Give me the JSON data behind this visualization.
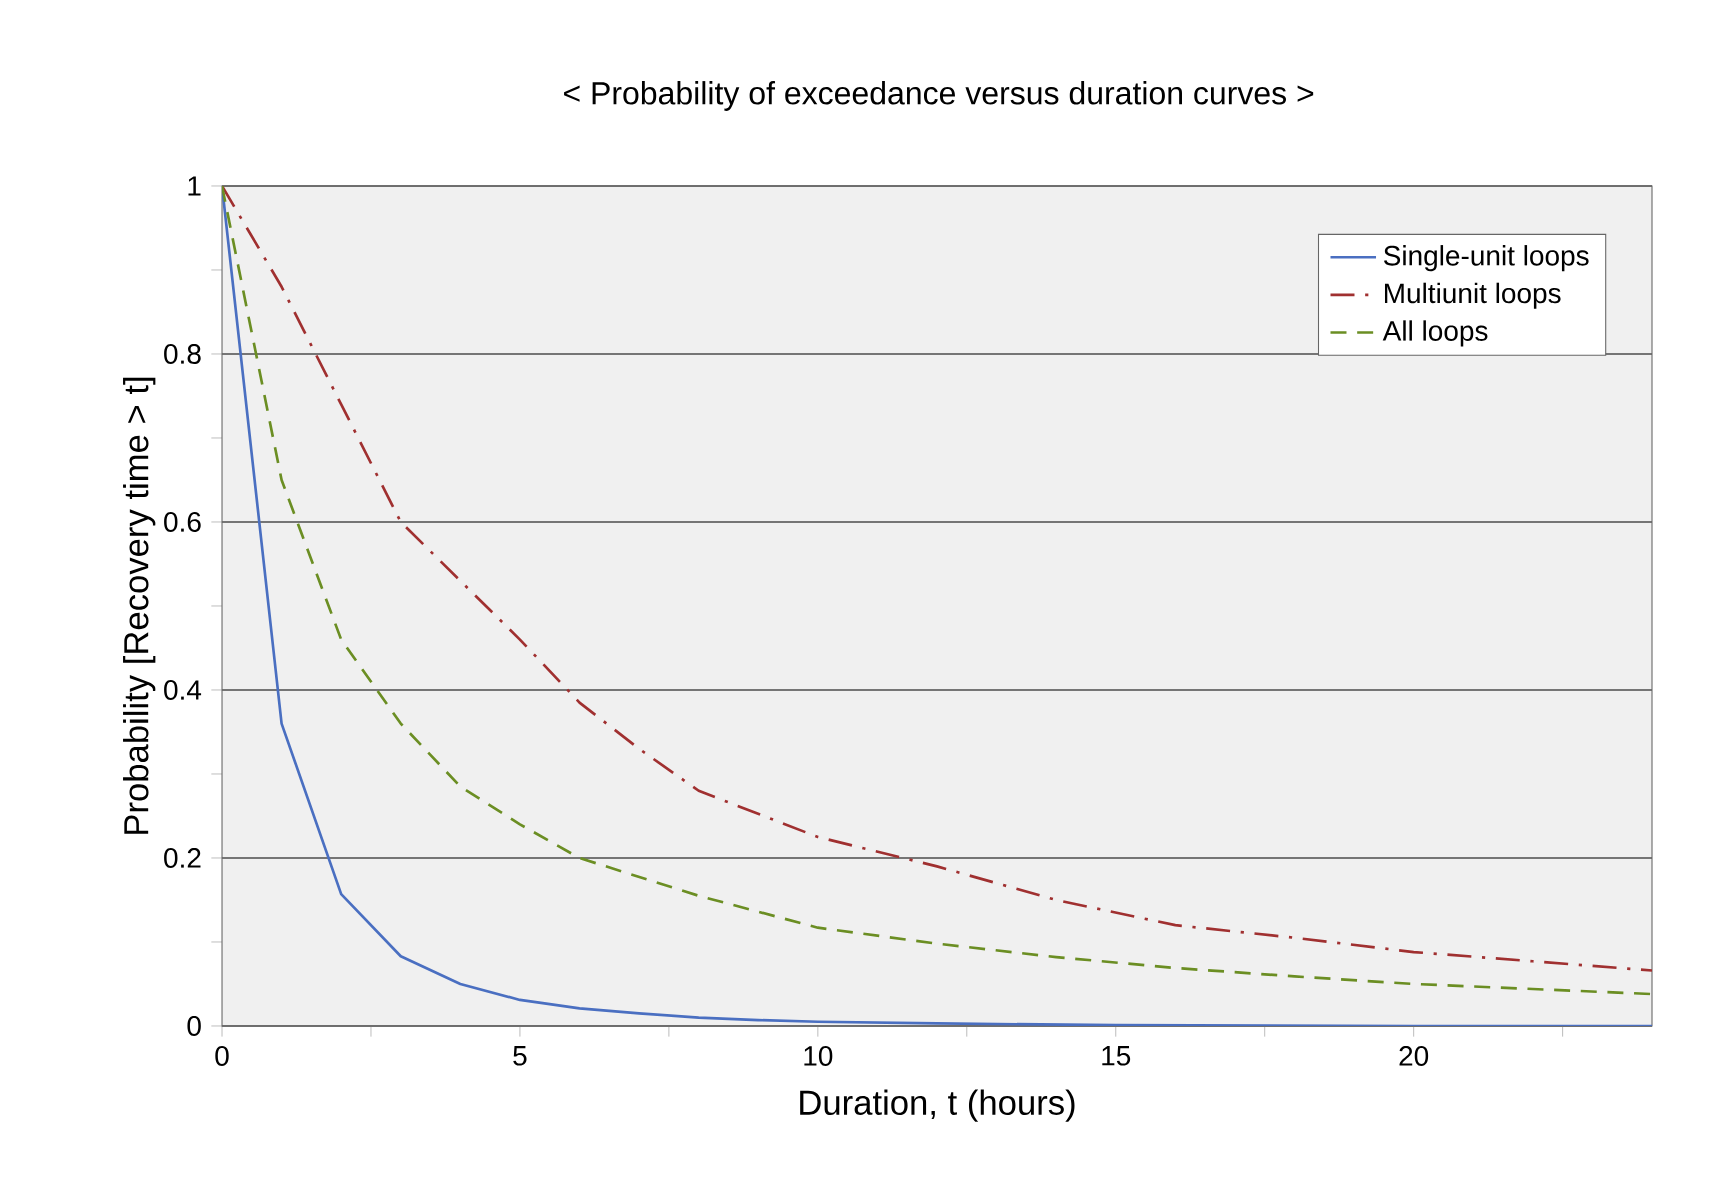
{
  "chart_data": {
    "type": "line",
    "title": "< Probability of exceedance versus duration curves >",
    "xlabel": "Duration, t (hours)",
    "ylabel": "Probability [Recovery time > t]",
    "xlim": [
      0,
      24
    ],
    "ylim": [
      0,
      1
    ],
    "xticks": [
      0,
      {
        "value": 2.5,
        "label": null
      },
      5,
      {
        "value": 7.5,
        "label": null
      },
      10,
      {
        "value": 12.5,
        "label": null
      },
      15,
      {
        "value": 17.5,
        "label": null
      },
      20,
      {
        "value": 22.5,
        "label": null
      }
    ],
    "yticks": [
      0,
      {
        "value": 0.1,
        "label": null
      },
      0.2,
      {
        "value": 0.3,
        "label": null
      },
      0.4,
      {
        "value": 0.5,
        "label": null
      },
      0.6,
      {
        "value": 0.7,
        "label": null
      },
      0.8,
      {
        "value": 0.9,
        "label": null
      },
      1
    ],
    "grid": "y",
    "legend": "top right",
    "series": [
      {
        "name": "Single-unit loops",
        "color": "#4a6fc1",
        "line_style": "solid",
        "x": [
          0,
          1,
          2,
          3,
          4,
          5,
          6,
          7,
          8,
          9,
          10,
          12,
          15,
          20,
          24
        ],
        "values": [
          1,
          0.36,
          0.157,
          0.083,
          0.05,
          0.031,
          0.021,
          0.015,
          0.01,
          0.007,
          0.005,
          0.003,
          0.001,
          0,
          0
        ]
      },
      {
        "name": "Multiunit loops",
        "color": "#a03030",
        "line_style": "dashdot",
        "x": [
          0,
          1,
          2,
          3,
          4,
          5,
          6,
          7,
          8,
          10,
          12,
          14,
          16,
          18,
          20,
          22,
          24
        ],
        "values": [
          1,
          0.88,
          0.74,
          0.6,
          0.53,
          0.46,
          0.385,
          0.33,
          0.28,
          0.225,
          0.19,
          0.15,
          0.12,
          0.105,
          0.088,
          0.077,
          0.066
        ]
      },
      {
        "name": "All loops",
        "color": "#6b8e23",
        "line_style": "dashed",
        "x": [
          0,
          1,
          2,
          3,
          4,
          5,
          6,
          8,
          10,
          12,
          14,
          16,
          18,
          20,
          22,
          24
        ],
        "values": [
          1,
          0.65,
          0.46,
          0.36,
          0.285,
          0.24,
          0.2,
          0.155,
          0.117,
          0.098,
          0.082,
          0.069,
          0.059,
          0.05,
          0.044,
          0.038
        ]
      }
    ]
  }
}
